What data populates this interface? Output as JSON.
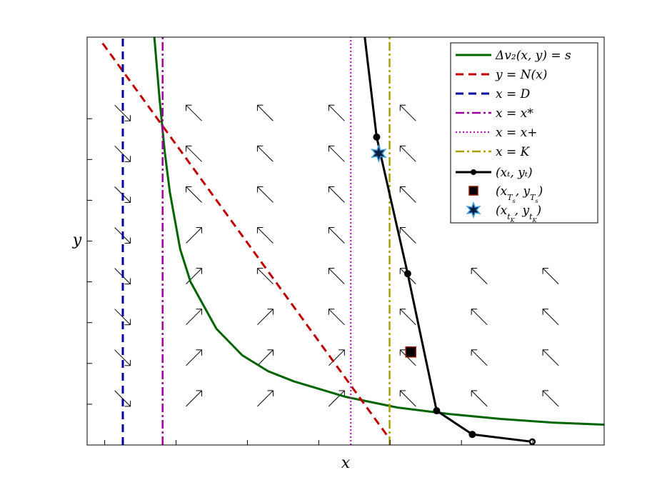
{
  "chart_data": {
    "type": "line",
    "title": "",
    "xlabel": "x",
    "ylabel": "y",
    "xlim": [
      0,
      1
    ],
    "ylim": [
      0,
      1
    ],
    "xticks": [
      0.034,
      0.172,
      0.31,
      0.448,
      0.586,
      0.724,
      0.862,
      1.0
    ],
    "yticks": [
      0.1,
      0.2,
      0.3,
      0.4,
      0.5,
      0.6,
      0.7,
      0.8
    ],
    "tick_labels_visible": false,
    "grid": false,
    "legend_position": "top-right",
    "series": [
      {
        "key": "indifference",
        "name": "Δv₂(x, y) = s",
        "kind": "curve",
        "color": "#006400",
        "dash": "solid",
        "x": [
          0.13,
          0.14,
          0.15,
          0.16,
          0.18,
          0.2,
          0.25,
          0.3,
          0.35,
          0.4,
          0.5,
          0.6,
          0.7,
          0.8,
          0.9,
          1.0
        ],
        "y": [
          1.0,
          0.85,
          0.72,
          0.62,
          0.48,
          0.4,
          0.285,
          0.22,
          0.181,
          0.156,
          0.118,
          0.092,
          0.076,
          0.064,
          0.055,
          0.05
        ]
      },
      {
        "key": "nullcline",
        "name": "y = N(x)",
        "kind": "line",
        "color": "#c00000",
        "dash": "dashed",
        "x": [
          0.03,
          0.585
        ],
        "y": [
          0.985,
          0.015
        ]
      },
      {
        "key": "x_D",
        "name": "x = D",
        "kind": "vline",
        "color": "#00009c",
        "dash": "dashed",
        "x": [
          0.069,
          0.069
        ],
        "y": [
          0,
          1
        ]
      },
      {
        "key": "x_star",
        "name": "x = x*",
        "kind": "vline",
        "color": "#a000a0",
        "dash": "dashdot",
        "x": [
          0.146,
          0.146
        ],
        "y": [
          0,
          1
        ]
      },
      {
        "key": "x_plus",
        "name": "x = x+",
        "kind": "vline",
        "color": "#c000c0",
        "dash": "dotted",
        "x": [
          0.51,
          0.51
        ],
        "y": [
          0,
          1
        ]
      },
      {
        "key": "x_K",
        "name": "x = K",
        "kind": "vline",
        "color": "#a8a000",
        "dash": "dashdot",
        "x": [
          0.585,
          0.585
        ],
        "y": [
          0,
          1
        ]
      },
      {
        "key": "trajectory",
        "name": "(xₜ, yₜ)",
        "kind": "trajectory",
        "color": "#000000",
        "dash": "solid",
        "x": [
          0.537,
          0.56,
          0.62,
          0.676,
          0.745,
          0.861
        ],
        "y": [
          1.0,
          0.755,
          0.42,
          0.084,
          0.026,
          0.008
        ]
      }
    ],
    "markers": [
      {
        "key": "Ts",
        "name": "(x_{T_s}, y_{T_s})",
        "shape": "square",
        "color": "#8b1a00",
        "fill": "#000000",
        "x": 0.626,
        "y": 0.228
      },
      {
        "key": "tK",
        "name": "(x_{t_K}, y_{t_K})",
        "shape": "star",
        "color": "#3fa0e0",
        "fill": "#0d1c40",
        "x": 0.564,
        "y": 0.715
      }
    ],
    "direction_field": {
      "columns_x": [
        0.034,
        0.172,
        0.31,
        0.448,
        0.586,
        0.724,
        0.862,
        1.0
      ],
      "rows_y": [
        0.1,
        0.2,
        0.3,
        0.4,
        0.5,
        0.6,
        0.7,
        0.8
      ],
      "arrows": [
        [
          "se",
          "ne",
          "ne",
          "ne",
          "nw",
          "nw",
          "nw",
          "nw"
        ],
        [
          "se",
          "ne",
          "ne",
          "ne",
          "nw",
          "nw",
          "nw",
          "nw"
        ],
        [
          "se",
          "ne",
          "ne",
          "nw",
          "nw",
          "nw",
          "nw",
          "nw"
        ],
        [
          "se",
          "ne",
          "nw",
          "nw",
          "nw",
          "nw",
          "nw",
          "nw"
        ],
        [
          "se",
          "ne",
          "nw",
          "nw",
          "nw",
          "",
          "",
          ""
        ],
        [
          "se",
          "nw",
          "nw",
          "nw",
          "nw",
          "",
          "",
          ""
        ],
        [
          "se",
          "nw",
          "nw",
          "nw",
          "nw",
          "",
          "",
          ""
        ],
        [
          "se",
          "nw",
          "nw",
          "nw",
          "nw",
          "",
          "",
          ""
        ]
      ]
    }
  }
}
